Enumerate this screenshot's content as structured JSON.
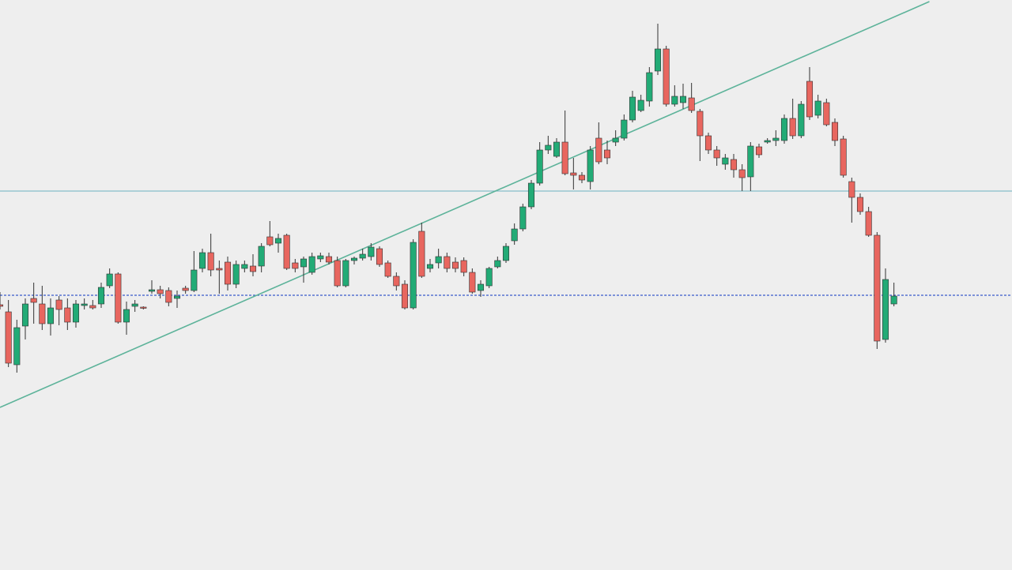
{
  "chart_data": {
    "type": "candlestick",
    "xlim": [
      0,
      120
    ],
    "ylim": [
      0,
      722
    ],
    "up_color": "#22ab76",
    "down_color": "#e8665f",
    "wick_color": "#333333",
    "open": [
      336,
      327,
      260,
      309,
      344,
      337,
      312,
      342,
      332,
      314,
      335,
      335,
      337,
      360,
      375,
      314,
      334,
      333,
      353,
      355,
      354,
      344,
      357,
      354,
      382,
      402,
      382,
      390,
      362,
      382,
      385,
      385,
      422,
      414,
      424,
      389,
      384,
      377,
      394,
      397,
      392,
      360,
      392,
      395,
      397,
      407,
      389,
      372,
      362,
      332,
      429,
      382,
      389,
      397,
      390,
      392,
      377,
      354,
      360,
      384,
      392,
      417,
      432,
      460,
      490,
      532,
      524,
      542,
      503,
      500,
      492,
      547,
      532,
      542,
      547,
      570,
      582,
      594,
      632,
      660,
      590,
      592,
      598,
      581,
      550,
      532,
      514,
      520,
      507,
      498,
      536,
      542,
      544,
      544,
      572,
      550,
      619,
      576,
      592,
      567,
      546,
      492,
      472,
      454,
      424,
      292,
      337
    ],
    "high": [
      352,
      342,
      317,
      344,
      364,
      360,
      344,
      347,
      344,
      342,
      344,
      342,
      364,
      382,
      377,
      340,
      342,
      334,
      367,
      360,
      358,
      354,
      360,
      404,
      407,
      426,
      392,
      397,
      392,
      392,
      400,
      414,
      442,
      426,
      426,
      394,
      397,
      402,
      402,
      402,
      397,
      394,
      397,
      407,
      414,
      410,
      392,
      377,
      367,
      419,
      440,
      394,
      407,
      402,
      396,
      396,
      382,
      367,
      384,
      397,
      414,
      439,
      464,
      494,
      542,
      550,
      547,
      582,
      522,
      504,
      537,
      567,
      544,
      557,
      577,
      607,
      602,
      637,
      692,
      664,
      614,
      616,
      617,
      584,
      554,
      537,
      527,
      527,
      514,
      542,
      540,
      547,
      557,
      577,
      597,
      594,
      637,
      602,
      597,
      572,
      550,
      497,
      477,
      460,
      428,
      382,
      364
    ],
    "low": [
      330,
      257,
      250,
      292,
      312,
      304,
      297,
      310,
      304,
      307,
      330,
      330,
      332,
      357,
      312,
      298,
      327,
      330,
      350,
      344,
      334,
      332,
      350,
      352,
      377,
      372,
      350,
      354,
      357,
      377,
      372,
      377,
      410,
      402,
      380,
      377,
      364,
      374,
      390,
      387,
      358,
      358,
      387,
      392,
      392,
      384,
      370,
      354,
      330,
      330,
      370,
      377,
      382,
      377,
      377,
      372,
      350,
      346,
      357,
      382,
      389,
      412,
      429,
      457,
      487,
      527,
      522,
      500,
      482,
      490,
      482,
      514,
      514,
      537,
      544,
      567,
      580,
      587,
      627,
      587,
      587,
      584,
      579,
      518,
      527,
      512,
      507,
      497,
      480,
      480,
      522,
      540,
      537,
      540,
      546,
      547,
      570,
      572,
      562,
      537,
      497,
      440,
      450,
      422,
      280,
      288,
      334
    ],
    "close": [
      334,
      262,
      307,
      337,
      339,
      312,
      332,
      330,
      314,
      337,
      337,
      332,
      358,
      375,
      314,
      330,
      337,
      332,
      355,
      350,
      339,
      347,
      354,
      380,
      402,
      380,
      380,
      362,
      387,
      387,
      378,
      410,
      412,
      420,
      382,
      382,
      394,
      397,
      398,
      390,
      360,
      392,
      395,
      400,
      409,
      387,
      372,
      360,
      332,
      415,
      372,
      387,
      397,
      382,
      382,
      377,
      352,
      362,
      382,
      392,
      410,
      432,
      460,
      490,
      532,
      538,
      542,
      502,
      500,
      494,
      532,
      517,
      522,
      547,
      570,
      599,
      595,
      630,
      660,
      590,
      600,
      600,
      582,
      550,
      532,
      522,
      522,
      507,
      497,
      537,
      526,
      544,
      547,
      572,
      550,
      590,
      574,
      594,
      564,
      544,
      500,
      472,
      454,
      424,
      290,
      368,
      347
    ],
    "lines": [
      {
        "kind": "horizontal",
        "value": 480,
        "color": "#86bfc9",
        "dashed": false
      },
      {
        "kind": "horizontal",
        "value": 348,
        "color": "#3a5ccc",
        "dashed": true
      },
      {
        "kind": "trend",
        "x": [
          0,
          110.2
        ],
        "y": [
          206,
          720
        ],
        "color": "#5db39a",
        "dashed": false
      }
    ]
  }
}
